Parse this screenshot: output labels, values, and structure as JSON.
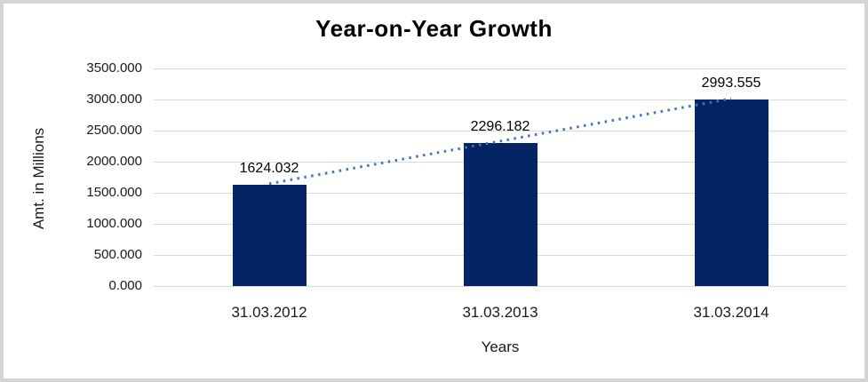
{
  "frame": {
    "border_color": "#d4d4d4",
    "background_color": "#ffffff"
  },
  "chart_data": {
    "type": "bar",
    "title": "Year-on-Year Growth",
    "xlabel": "Years",
    "ylabel": "Amt. in Millions",
    "categories": [
      "31.03.2012",
      "31.03.2013",
      "31.03.2014"
    ],
    "values": [
      1624.032,
      2296.182,
      2993.555
    ],
    "data_labels": [
      "1624.032",
      "2296.182",
      "2993.555"
    ],
    "y_tick_labels": [
      "3500.000",
      "3000.000",
      "2500.000",
      "2000.000",
      "1500.000",
      "1000.000",
      "500.000",
      "0.000"
    ],
    "y_tick_values": [
      3500,
      3000,
      2500,
      2000,
      1500,
      1000,
      500,
      0
    ],
    "ylim": [
      0,
      3500
    ],
    "y_step": 500,
    "grid": "horizontal",
    "gridline_color": "#d9d9d9",
    "bar_color": "#042463",
    "legend": "none",
    "trendline": {
      "style": "dotted",
      "color": "#4472c4",
      "from_value": 1624.032,
      "to_value": 2993.555
    }
  }
}
